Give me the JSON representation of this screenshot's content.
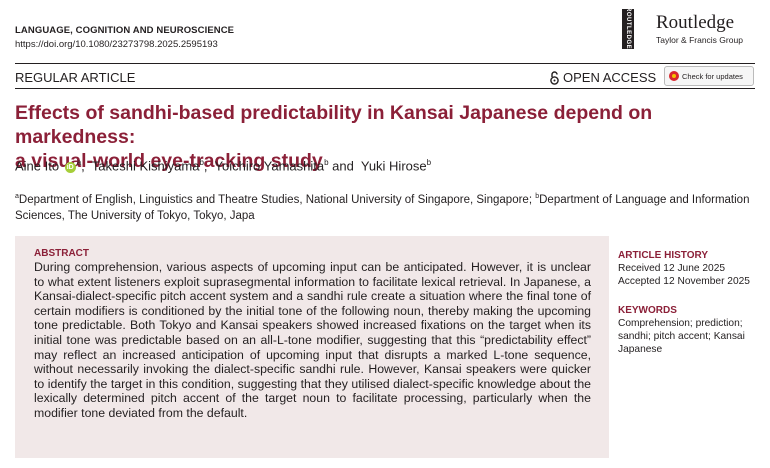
{
  "header": {
    "journal": "LANGUAGE, COGNITION AND NEUROSCIENCE",
    "doi": "https://doi.org/10.1080/23273798.2025.2595193",
    "publisher_vertical": "ROUTLEDGE",
    "publisher_name": "Routledge",
    "publisher_sub": "Taylor & Francis Group"
  },
  "article_type": "REGULAR ARTICLE",
  "open_access": "OPEN ACCESS",
  "check_updates": "Check for updates",
  "title_lines": [
    "Effects of sandhi-based predictability in Kansai Japanese depend on markedness:",
    "a visual-world eye-tracking study"
  ],
  "authors": [
    {
      "name": "Aine Ito",
      "sup": "a",
      "orcid": true
    },
    {
      "name": "Takeshi Kishiyama",
      "sup": "b"
    },
    {
      "name": "Yoichiro Yamashita",
      "sup": "b"
    },
    {
      "name": "Yuki Hirose",
      "sup": "b"
    }
  ],
  "orcid_label": "iD",
  "affiliations": {
    "a_sup": "a",
    "a_text": "Department of English, Linguistics and Theatre Studies, National University of Singapore, Singapore; ",
    "b_sup": "b",
    "b_text": "Department of Language and Information Sciences, The University of Tokyo, Tokyo, Japa"
  },
  "abstract": {
    "heading": "ABSTRACT",
    "text": "During comprehension, various aspects of upcoming input can be anticipated. However, it is unclear to what extent listeners exploit suprasegmental information to facilitate lexical retrieval. In Japanese, a Kansai-dialect-specific pitch accent system and a sandhi rule create a situation where the final tone of certain modifiers is conditioned by the initial tone of the following noun, thereby making the upcoming tone predictable. Both Tokyo and Kansai speakers showed increased fixations on the target when its initial tone was predictable based on an all-L-tone modifier, suggesting that this “predictability effect” may reflect an increased anticipation of upcoming input that disrupts a marked L-tone sequence, without necessarily invoking the dialect-specific sandhi rule. However, Kansai speakers were quicker to identify the target in this condition, suggesting that they utilised dialect-specific knowledge about the lexically determined pitch accent of the target noun to facilitate processing, particularly when the modifier tone deviated from the default."
  },
  "history": {
    "heading": "ARTICLE HISTORY",
    "received": "Received 12 June 2025",
    "accepted": "Accepted 12 November 2025"
  },
  "keywords": {
    "heading": "KEYWORDS",
    "text": "Comprehension; prediction; sandhi; pitch accent; Kansai Japanese"
  }
}
